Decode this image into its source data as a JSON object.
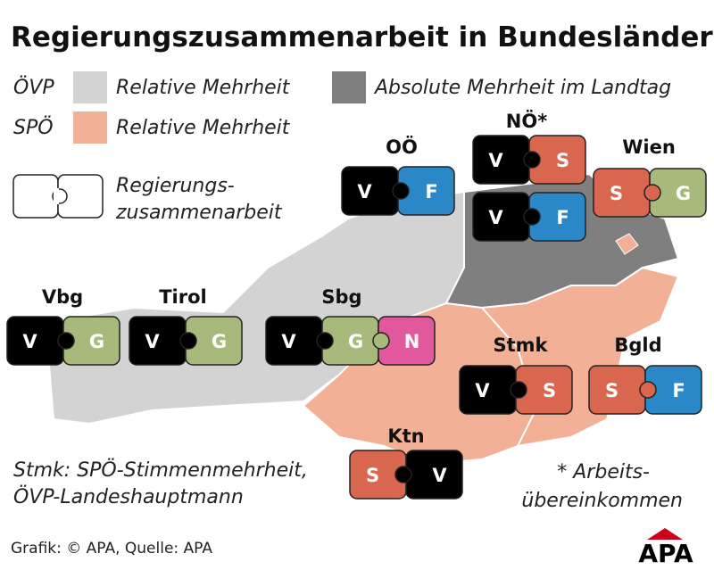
{
  "title": "Regierungszusammenarbeit in Bundesländern",
  "legend": {
    "oevp": "ÖVP",
    "oevp_label": "Relative Mehrheit",
    "absolute_label": "Absolute Mehrheit im Landtag",
    "spoe": "SPÖ",
    "spoe_label": "Relative Mehrheit",
    "coop": [
      "Regierungs-",
      "zusammenarbeit"
    ]
  },
  "party_colors": {
    "V": "#000000",
    "S": "#d9674f",
    "F": "#2a88c8",
    "G": "#a8b97c",
    "N": "#e2589c"
  },
  "states": [
    {
      "name": "OÖ",
      "pieces": [
        [
          "V",
          "F"
        ]
      ]
    },
    {
      "name": "NÖ*",
      "pieces": [
        [
          "V",
          "S"
        ],
        [
          "V",
          "F"
        ]
      ]
    },
    {
      "name": "Wien",
      "pieces": [
        [
          "S",
          "G"
        ]
      ]
    },
    {
      "name": "Vbg",
      "pieces": [
        [
          "V",
          "G"
        ]
      ]
    },
    {
      "name": "Tirol",
      "pieces": [
        [
          "V",
          "G"
        ]
      ]
    },
    {
      "name": "Sbg",
      "pieces": [
        [
          "V",
          "G",
          "N"
        ]
      ]
    },
    {
      "name": "Stmk",
      "pieces": [
        [
          "V",
          "S"
        ]
      ]
    },
    {
      "name": "Bgld",
      "pieces": [
        [
          "S",
          "F"
        ]
      ]
    },
    {
      "name": "Ktn",
      "pieces": [
        [
          "S",
          "V"
        ]
      ]
    }
  ],
  "notes": [
    "Stmk: SPÖ-Stimmenmehrheit,",
    "ÖVP-Landeshauptmann"
  ],
  "footnote": [
    "* Arbeits-",
    "übereinkommen"
  ],
  "source": "Grafik: © APA, Quelle: APA",
  "logo": "APA"
}
